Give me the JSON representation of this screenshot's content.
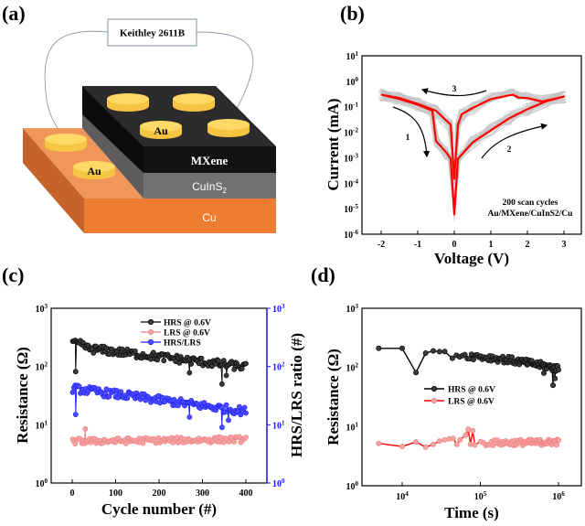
{
  "figure": {
    "panel_labels": [
      "(a)",
      "(b)",
      "(c)",
      "(d)"
    ]
  },
  "diagram_a": {
    "instrument_label": "Keithley 2611B",
    "layers": [
      {
        "name": "MXene",
        "color": "#141414"
      },
      {
        "name": "CuInS",
        "subscript": "2",
        "color": "#727070"
      },
      {
        "name": "Cu",
        "color": "#ed7d31"
      }
    ],
    "electrode_label": "Au",
    "electrode_color": "#ffd966",
    "electrode_count": 6
  },
  "chart_data": [
    {
      "id": "b",
      "type": "line",
      "title": "",
      "xlabel": "Voltage (V)",
      "ylabel": "Current (mA)",
      "xlim": [
        -2.5,
        3.5
      ],
      "ylim_log10": [
        -6,
        1
      ],
      "yscale": "log",
      "x_ticks": [
        "-2",
        "-1",
        "0",
        "1",
        "2",
        "3"
      ],
      "y_ticks": [
        "10^1",
        "10^0",
        "10^-1",
        "10^-2",
        "10^-3",
        "10^-4",
        "10^-5",
        "10^-6"
      ],
      "annotation_lines": [
        "200 scan cycles",
        "Au/MXene/CuInS2/Cu"
      ],
      "arrow_labels": [
        "1",
        "2",
        "3"
      ],
      "background_series_count": 200,
      "highlight_series": {
        "name": "representative cycle",
        "color": "#ff0000",
        "points": [
          {
            "x": -2.0,
            "y": 0.3
          },
          {
            "x": -1.5,
            "y": 0.2
          },
          {
            "x": -1.0,
            "y": 0.12
          },
          {
            "x": -0.6,
            "y": 0.07
          },
          {
            "x": -0.5,
            "y": 0.0045
          },
          {
            "x": -0.2,
            "y": 0.0015
          },
          {
            "x": -0.1,
            "y": 0.0009
          },
          {
            "x": 0.0,
            "y": 6e-06
          },
          {
            "x": 0.1,
            "y": 0.0009
          },
          {
            "x": 0.5,
            "y": 0.004
          },
          {
            "x": 1.0,
            "y": 0.012
          },
          {
            "x": 1.5,
            "y": 0.035
          },
          {
            "x": 2.0,
            "y": 0.08
          },
          {
            "x": 2.5,
            "y": 0.16
          },
          {
            "x": 3.0,
            "y": 0.25
          },
          {
            "x": 2.4,
            "y": 0.16
          },
          {
            "x": 2.0,
            "y": 0.22
          },
          {
            "x": 1.75,
            "y": 0.23
          },
          {
            "x": 1.6,
            "y": 0.3
          },
          {
            "x": 1.0,
            "y": 0.2
          },
          {
            "x": 0.5,
            "y": 0.09
          },
          {
            "x": 0.2,
            "y": 0.05
          },
          {
            "x": 0.1,
            "y": 0.02
          },
          {
            "x": 0.0,
            "y": 0.00015
          },
          {
            "x": -0.1,
            "y": 0.02
          },
          {
            "x": -0.5,
            "y": 0.07
          },
          {
            "x": -1.0,
            "y": 0.13
          },
          {
            "x": -1.5,
            "y": 0.22
          },
          {
            "x": -2.0,
            "y": 0.3
          }
        ]
      }
    },
    {
      "id": "c",
      "type": "scatter",
      "title": "",
      "xlabel": "Cycle number (#)",
      "ylabel": "Resistance (Ω)",
      "y2label": "HRS/LRS ratio (#)",
      "xlim": [
        -40,
        450
      ],
      "ylim_log10": [
        0,
        3
      ],
      "y2lim_log10": [
        0,
        3
      ],
      "yscale": "log",
      "x_ticks": [
        "0",
        "100",
        "200",
        "300",
        "400"
      ],
      "y_ticks": [
        "10^3",
        "10^2",
        "10^1",
        "10^0"
      ],
      "y2_ticks": [
        "10^3",
        "10^2",
        "10^1",
        "10^0"
      ],
      "legend": [
        "HRS @ 0.6V",
        "LRS @ 0.6V",
        "HRS/LRS"
      ],
      "legend_position": "top-center",
      "series": [
        {
          "name": "HRS @ 0.6V",
          "color": "#000000",
          "x_range": [
            1,
            400
          ],
          "start": 220,
          "end": 98,
          "outliers": [
            {
              "x": 8,
              "y": 82
            },
            {
              "x": 270,
              "y": 78
            },
            {
              "x": 345,
              "y": 50
            },
            {
              "x": 355,
              "y": 70
            }
          ]
        },
        {
          "name": "LRS @ 0.6V",
          "color": "#f08080",
          "x_range": [
            1,
            400
          ],
          "start": 5.2,
          "end": 5.6,
          "outliers": [
            {
              "x": 30,
              "y": 8.5
            }
          ]
        },
        {
          "name": "HRS/LRS",
          "color": "#1a1aff",
          "x_range": [
            1,
            400
          ],
          "start": 42,
          "end": 17,
          "outliers": [
            {
              "x": 8,
              "y": 15
            },
            {
              "x": 270,
              "y": 13.5
            },
            {
              "x": 345,
              "y": 9
            },
            {
              "x": 360,
              "y": 12
            }
          ]
        }
      ]
    },
    {
      "id": "d",
      "type": "scatter",
      "title": "",
      "xlabel": "Time (s)",
      "ylabel": "Resistance (Ω)",
      "xscale": "log",
      "yscale": "log",
      "xlim_log10": [
        3.5,
        6.3
      ],
      "ylim_log10": [
        0,
        3
      ],
      "x_ticks": [
        "10^4",
        "10^5",
        "10^6"
      ],
      "y_ticks": [
        "10^3",
        "10^2",
        "10^1",
        "10^0"
      ],
      "legend": [
        "HRS @ 0.6V",
        "LRS @ 0.6V"
      ],
      "legend_position": "center-left",
      "series": [
        {
          "name": "HRS @ 0.6V",
          "color": "#000000",
          "line_color": "#000000",
          "early_points": [
            {
              "x": 5000,
              "y": 210
            },
            {
              "x": 10000,
              "y": 210
            },
            {
              "x": 15000,
              "y": 82
            },
            {
              "x": 20000,
              "y": 175
            },
            {
              "x": 25000,
              "y": 190
            },
            {
              "x": 30000,
              "y": 185
            }
          ],
          "dense_range": [
            35000,
            1000000
          ],
          "dense_start": 165,
          "dense_end": 95,
          "outliers": [
            {
              "x": 650000,
              "y": 80
            },
            {
              "x": 850000,
              "y": 50
            },
            {
              "x": 900000,
              "y": 65
            }
          ]
        },
        {
          "name": "LRS @ 0.6V",
          "color": "#f08080",
          "line_color": "#ff0000",
          "early_points": [
            {
              "x": 5000,
              "y": 5.2
            },
            {
              "x": 10000,
              "y": 4.6
            },
            {
              "x": 15000,
              "y": 5.5
            },
            {
              "x": 20000,
              "y": 4.5
            },
            {
              "x": 25000,
              "y": 5.0
            },
            {
              "x": 30000,
              "y": 5.7
            },
            {
              "x": 35000,
              "y": 6.0
            },
            {
              "x": 40000,
              "y": 6.2
            },
            {
              "x": 45000,
              "y": 6.3
            },
            {
              "x": 50000,
              "y": 5.0
            },
            {
              "x": 55000,
              "y": 6.0
            },
            {
              "x": 65000,
              "y": 7.2
            },
            {
              "x": 70000,
              "y": 9.0
            },
            {
              "x": 75000,
              "y": 5.0
            },
            {
              "x": 80000,
              "y": 8.5
            }
          ],
          "dense_range": [
            85000,
            1000000
          ],
          "dense_start": 5.3,
          "dense_end": 5.5,
          "outliers": []
        }
      ]
    }
  ]
}
